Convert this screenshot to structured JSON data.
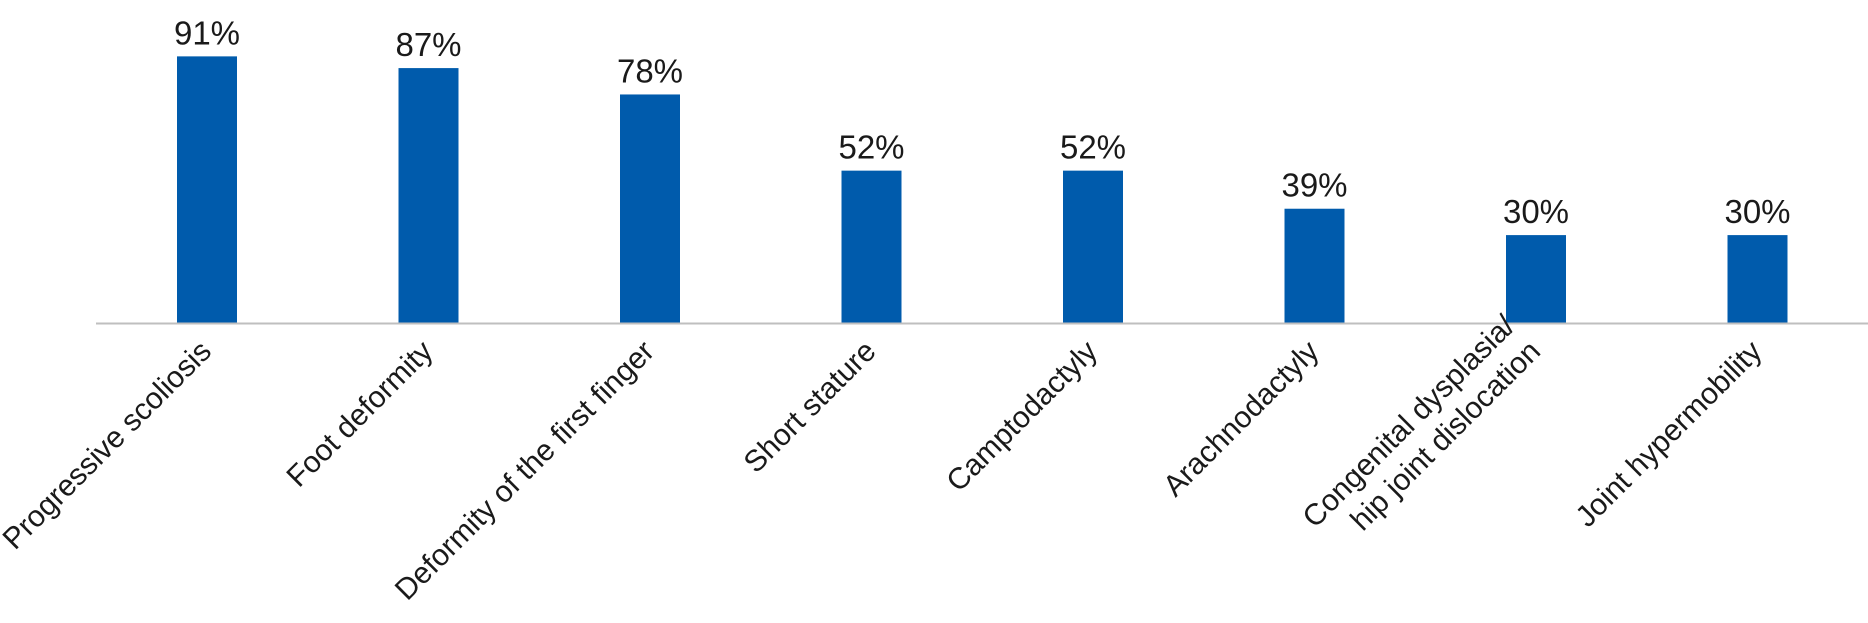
{
  "chart_data": {
    "type": "bar",
    "categories": [
      [
        "Progressive scoliosis"
      ],
      [
        "Foot deformity"
      ],
      [
        "Deformity of the first finger"
      ],
      [
        "Short stature"
      ],
      [
        "Camptodactyly"
      ],
      [
        "Arachnodactyly"
      ],
      [
        "Congenital dysplasia/",
        "hip joint dislocation"
      ],
      [
        "Joint hypermobility"
      ]
    ],
    "values": [
      91,
      87,
      78,
      52,
      52,
      39,
      30,
      30
    ],
    "value_labels": [
      "91%",
      "87%",
      "78%",
      "52%",
      "52%",
      "39%",
      "30%",
      "30%"
    ],
    "ylim": [
      0,
      100
    ],
    "grid": false,
    "colors": {
      "bar": "#005BAC",
      "axis": "#bfbfbf",
      "text": "#1a1a1a"
    }
  }
}
